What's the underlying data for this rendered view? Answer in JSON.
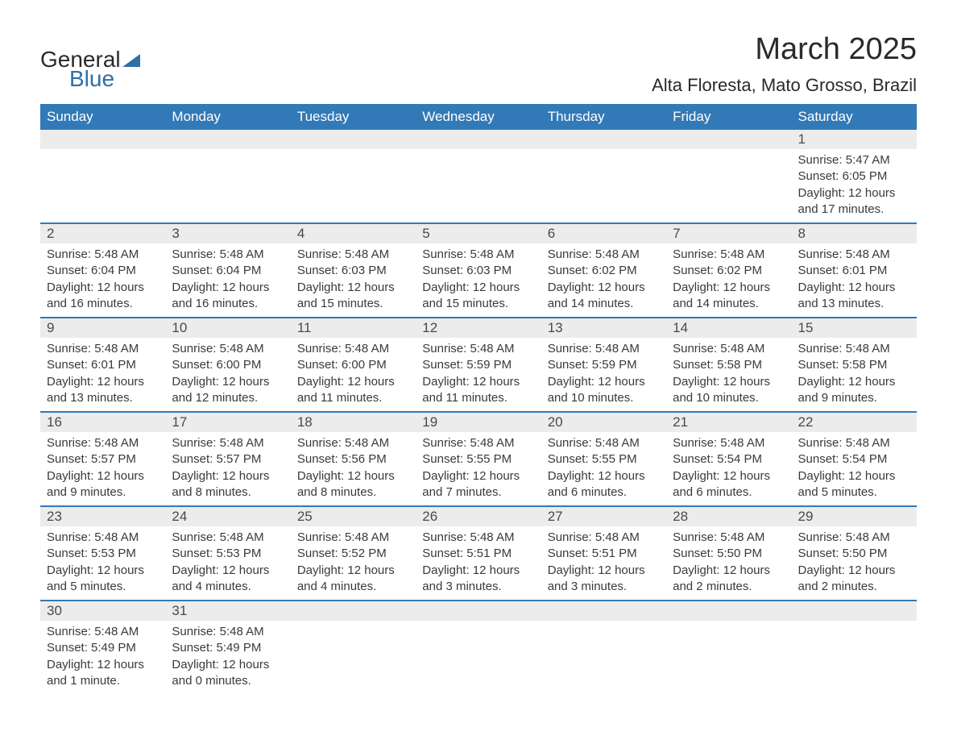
{
  "brand": {
    "word1": "General",
    "word2": "Blue"
  },
  "title": "March 2025",
  "location": "Alta Floresta, Mato Grosso, Brazil",
  "colors": {
    "header_bg": "#3279b7",
    "header_text": "#ffffff",
    "daynum_bg": "#ececec",
    "text": "#3a3a3a",
    "rule": "#3279b7"
  },
  "day_labels": [
    "Sunday",
    "Monday",
    "Tuesday",
    "Wednesday",
    "Thursday",
    "Friday",
    "Saturday"
  ],
  "labels": {
    "sunrise": "Sunrise:",
    "sunset": "Sunset:",
    "daylight": "Daylight:"
  },
  "weeks": [
    [
      null,
      null,
      null,
      null,
      null,
      null,
      {
        "n": "1",
        "sunrise": "5:47 AM",
        "sunset": "6:05 PM",
        "daylight": "12 hours and 17 minutes."
      }
    ],
    [
      {
        "n": "2",
        "sunrise": "5:48 AM",
        "sunset": "6:04 PM",
        "daylight": "12 hours and 16 minutes."
      },
      {
        "n": "3",
        "sunrise": "5:48 AM",
        "sunset": "6:04 PM",
        "daylight": "12 hours and 16 minutes."
      },
      {
        "n": "4",
        "sunrise": "5:48 AM",
        "sunset": "6:03 PM",
        "daylight": "12 hours and 15 minutes."
      },
      {
        "n": "5",
        "sunrise": "5:48 AM",
        "sunset": "6:03 PM",
        "daylight": "12 hours and 15 minutes."
      },
      {
        "n": "6",
        "sunrise": "5:48 AM",
        "sunset": "6:02 PM",
        "daylight": "12 hours and 14 minutes."
      },
      {
        "n": "7",
        "sunrise": "5:48 AM",
        "sunset": "6:02 PM",
        "daylight": "12 hours and 14 minutes."
      },
      {
        "n": "8",
        "sunrise": "5:48 AM",
        "sunset": "6:01 PM",
        "daylight": "12 hours and 13 minutes."
      }
    ],
    [
      {
        "n": "9",
        "sunrise": "5:48 AM",
        "sunset": "6:01 PM",
        "daylight": "12 hours and 13 minutes."
      },
      {
        "n": "10",
        "sunrise": "5:48 AM",
        "sunset": "6:00 PM",
        "daylight": "12 hours and 12 minutes."
      },
      {
        "n": "11",
        "sunrise": "5:48 AM",
        "sunset": "6:00 PM",
        "daylight": "12 hours and 11 minutes."
      },
      {
        "n": "12",
        "sunrise": "5:48 AM",
        "sunset": "5:59 PM",
        "daylight": "12 hours and 11 minutes."
      },
      {
        "n": "13",
        "sunrise": "5:48 AM",
        "sunset": "5:59 PM",
        "daylight": "12 hours and 10 minutes."
      },
      {
        "n": "14",
        "sunrise": "5:48 AM",
        "sunset": "5:58 PM",
        "daylight": "12 hours and 10 minutes."
      },
      {
        "n": "15",
        "sunrise": "5:48 AM",
        "sunset": "5:58 PM",
        "daylight": "12 hours and 9 minutes."
      }
    ],
    [
      {
        "n": "16",
        "sunrise": "5:48 AM",
        "sunset": "5:57 PM",
        "daylight": "12 hours and 9 minutes."
      },
      {
        "n": "17",
        "sunrise": "5:48 AM",
        "sunset": "5:57 PM",
        "daylight": "12 hours and 8 minutes."
      },
      {
        "n": "18",
        "sunrise": "5:48 AM",
        "sunset": "5:56 PM",
        "daylight": "12 hours and 8 minutes."
      },
      {
        "n": "19",
        "sunrise": "5:48 AM",
        "sunset": "5:55 PM",
        "daylight": "12 hours and 7 minutes."
      },
      {
        "n": "20",
        "sunrise": "5:48 AM",
        "sunset": "5:55 PM",
        "daylight": "12 hours and 6 minutes."
      },
      {
        "n": "21",
        "sunrise": "5:48 AM",
        "sunset": "5:54 PM",
        "daylight": "12 hours and 6 minutes."
      },
      {
        "n": "22",
        "sunrise": "5:48 AM",
        "sunset": "5:54 PM",
        "daylight": "12 hours and 5 minutes."
      }
    ],
    [
      {
        "n": "23",
        "sunrise": "5:48 AM",
        "sunset": "5:53 PM",
        "daylight": "12 hours and 5 minutes."
      },
      {
        "n": "24",
        "sunrise": "5:48 AM",
        "sunset": "5:53 PM",
        "daylight": "12 hours and 4 minutes."
      },
      {
        "n": "25",
        "sunrise": "5:48 AM",
        "sunset": "5:52 PM",
        "daylight": "12 hours and 4 minutes."
      },
      {
        "n": "26",
        "sunrise": "5:48 AM",
        "sunset": "5:51 PM",
        "daylight": "12 hours and 3 minutes."
      },
      {
        "n": "27",
        "sunrise": "5:48 AM",
        "sunset": "5:51 PM",
        "daylight": "12 hours and 3 minutes."
      },
      {
        "n": "28",
        "sunrise": "5:48 AM",
        "sunset": "5:50 PM",
        "daylight": "12 hours and 2 minutes."
      },
      {
        "n": "29",
        "sunrise": "5:48 AM",
        "sunset": "5:50 PM",
        "daylight": "12 hours and 2 minutes."
      }
    ],
    [
      {
        "n": "30",
        "sunrise": "5:48 AM",
        "sunset": "5:49 PM",
        "daylight": "12 hours and 1 minute."
      },
      {
        "n": "31",
        "sunrise": "5:48 AM",
        "sunset": "5:49 PM",
        "daylight": "12 hours and 0 minutes."
      },
      null,
      null,
      null,
      null,
      null
    ]
  ]
}
